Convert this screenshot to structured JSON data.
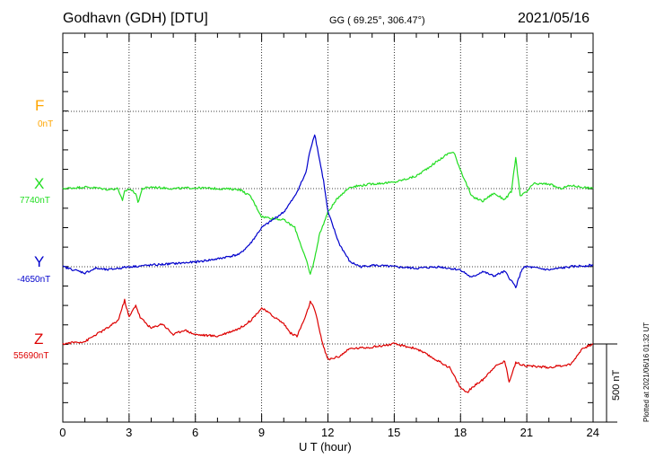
{
  "header": {
    "station": "Godhavn (GDH)  [DTU]",
    "coords": "GG ( 69.25°, 306.47°)",
    "date": "2021/05/16"
  },
  "plotted_note": "Plotted at 2021/06/16 01:32 UT",
  "chart_data": {
    "type": "line",
    "xlabel": "U T (hour)",
    "xlim": [
      0,
      24
    ],
    "xticks": [
      "0",
      "3",
      "6",
      "9",
      "12",
      "15",
      "18",
      "21",
      "24"
    ],
    "scale_bar": "500 nT",
    "grid": true,
    "series": [
      {
        "name": "F",
        "baseline": "0nT",
        "color": "#ffa500",
        "x": [],
        "y": []
      },
      {
        "name": "X",
        "baseline": "7740nT",
        "color": "#22dd22",
        "x": [
          0,
          0.5,
          1,
          1.5,
          2,
          2.5,
          2.7,
          2.8,
          3,
          3.3,
          3.4,
          3.6,
          4,
          5,
          6,
          7,
          8,
          8.5,
          9,
          10,
          10.5,
          11,
          11.2,
          11.4,
          11.6,
          12,
          12.5,
          13,
          14,
          15,
          16,
          16.5,
          17,
          17.5,
          17.7,
          18,
          18.5,
          19,
          19.5,
          20,
          20.3,
          20.5,
          20.7,
          21,
          21.3,
          22,
          22.5,
          23,
          24
        ],
        "y": [
          0,
          5,
          10,
          5,
          -5,
          0,
          -80,
          -20,
          0,
          -30,
          -90,
          0,
          10,
          0,
          5,
          0,
          -5,
          -50,
          -180,
          -200,
          -250,
          -450,
          -550,
          -450,
          -300,
          -150,
          -50,
          10,
          30,
          40,
          80,
          130,
          180,
          230,
          230,
          120,
          -50,
          -80,
          -30,
          -70,
          -20,
          200,
          -50,
          -20,
          30,
          30,
          0,
          20,
          0
        ]
      },
      {
        "name": "Y",
        "baseline": "-4650nT",
        "color": "#0000cc",
        "x": [
          0,
          0.5,
          1,
          1.5,
          2,
          3,
          4,
          5,
          6,
          7,
          8,
          8.5,
          9,
          9.5,
          10,
          10.5,
          11,
          11.2,
          11.4,
          11.6,
          11.8,
          12,
          12.5,
          13,
          13.5,
          14,
          15,
          16,
          17,
          18,
          18.5,
          19,
          19.5,
          20,
          20.2,
          20.5,
          20.8,
          21,
          22,
          23,
          24
        ],
        "y": [
          0,
          -20,
          -40,
          -10,
          -20,
          0,
          10,
          20,
          30,
          50,
          80,
          150,
          250,
          300,
          350,
          450,
          600,
          750,
          850,
          700,
          550,
          350,
          150,
          30,
          0,
          10,
          0,
          -10,
          0,
          -20,
          -70,
          -30,
          -60,
          -30,
          -70,
          -130,
          -10,
          0,
          -20,
          0,
          10
        ]
      },
      {
        "name": "Z",
        "baseline": "55690nT",
        "color": "#dd0000",
        "x": [
          0,
          0.5,
          1,
          1.5,
          2,
          2.5,
          2.8,
          3,
          3.3,
          3.5,
          4,
          4.5,
          5,
          5.5,
          6,
          7,
          8,
          8.5,
          9,
          9.5,
          10,
          10.3,
          10.6,
          11,
          11.2,
          11.4,
          11.6,
          11.8,
          12,
          12.5,
          13,
          14,
          15,
          16,
          17,
          17.5,
          18,
          18.3,
          18.6,
          19,
          19.5,
          20,
          20.2,
          20.5,
          21,
          22,
          23,
          23.5,
          24
        ],
        "y": [
          0,
          10,
          15,
          60,
          100,
          150,
          280,
          170,
          250,
          170,
          100,
          130,
          60,
          90,
          60,
          50,
          100,
          150,
          230,
          180,
          130,
          70,
          50,
          180,
          270,
          220,
          100,
          -20,
          -100,
          -80,
          -30,
          -20,
          0,
          -30,
          -110,
          -150,
          -280,
          -310,
          -270,
          -230,
          -150,
          -110,
          -240,
          -120,
          -140,
          -150,
          -130,
          -30,
          0
        ]
      }
    ]
  }
}
